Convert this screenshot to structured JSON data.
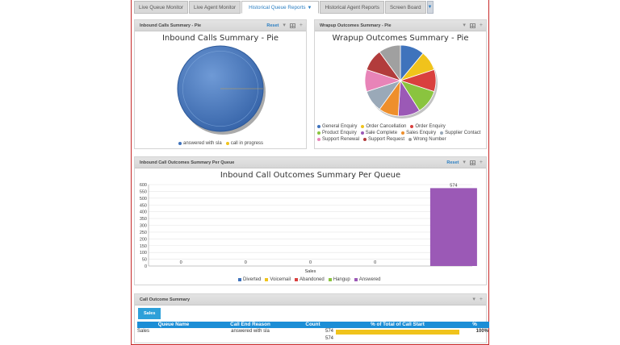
{
  "tabs": [
    {
      "label": "Live Queue Monitor"
    },
    {
      "label": "Live Agent Monitor"
    },
    {
      "label": "Historical Queue Reports"
    },
    {
      "label": "Historical Agent Reports"
    },
    {
      "label": "Screen Board"
    }
  ],
  "inbound_summary": {
    "panel_title": "Inbound Calls Summary - Pie",
    "reset_label": "Reset",
    "chart_title": "Inbound Calls Summary - Pie",
    "legend": [
      {
        "label": "answered with sla",
        "color": "#3f73bc"
      },
      {
        "label": "call in progress",
        "color": "#f0c31c"
      }
    ]
  },
  "wrapup_summary": {
    "panel_title": "Wrapup Outcomes Summary - Pie",
    "chart_title": "Wrapup Outcomes Summary - Pie",
    "legend": [
      {
        "label": "General Enquiry",
        "color": "#3f73bc"
      },
      {
        "label": "Order Cancellation",
        "color": "#f0c31c"
      },
      {
        "label": "Order Enquiry",
        "color": "#d9403e"
      },
      {
        "label": "Product Enquiry",
        "color": "#8ac43f"
      },
      {
        "label": "Sale Complete",
        "color": "#9b59b6"
      },
      {
        "label": "Sales Enquiry",
        "color": "#ee8f2c"
      },
      {
        "label": "Supplier Contact",
        "color": "#9aa9b8"
      },
      {
        "label": "Support Renewal",
        "color": "#e884b8"
      },
      {
        "label": "Support Request",
        "color": "#b23c3c"
      },
      {
        "label": "Wrong Number",
        "color": "#a0a0a0"
      }
    ]
  },
  "queue_summary": {
    "panel_title": "Inbound Call Outcomes Summary Per Queue",
    "reset_label": "Reset"
  },
  "chart_data": [
    {
      "type": "pie",
      "title": "Inbound Calls Summary - Pie",
      "labels": [
        "answered with sla",
        "call in progress"
      ],
      "values": [
        100,
        0
      ],
      "colors": [
        "#3f73bc",
        "#f0c31c"
      ]
    },
    {
      "type": "pie",
      "title": "Wrapup Outcomes Summary - Pie",
      "labels": [
        "General Enquiry",
        "Order Cancellation",
        "Order Enquiry",
        "Product Enquiry",
        "Sale Complete",
        "Sales Enquiry",
        "Supplier Contact",
        "Support Renewal",
        "Support Request",
        "Wrong Number"
      ],
      "values": [
        11,
        9,
        10,
        11,
        10,
        9,
        10,
        10,
        10,
        10
      ],
      "colors": [
        "#3f73bc",
        "#f0c31c",
        "#d9403e",
        "#8ac43f",
        "#9b59b6",
        "#ee8f2c",
        "#9aa9b8",
        "#e884b8",
        "#b23c3c",
        "#a0a0a0"
      ]
    },
    {
      "type": "bar",
      "title": "Inbound Call Outcomes Summary Per Queue",
      "xlabel": "Sales",
      "ylabel": "",
      "ylim": [
        0,
        600
      ],
      "yticks": [
        0,
        50,
        100,
        150,
        200,
        250,
        300,
        350,
        400,
        450,
        500,
        550,
        600
      ],
      "categories": [
        "Sales"
      ],
      "series": [
        {
          "name": "Diverted",
          "color": "#3f73bc",
          "values": [
            0
          ]
        },
        {
          "name": "Voicemail",
          "color": "#f0c31c",
          "values": [
            0
          ]
        },
        {
          "name": "Abandoned",
          "color": "#d9403e",
          "values": [
            0
          ]
        },
        {
          "name": "Hangup",
          "color": "#8ac43f",
          "values": [
            0
          ]
        },
        {
          "name": "Answered",
          "color": "#9b59b6",
          "values": [
            574
          ]
        }
      ],
      "data_labels": [
        "0",
        "0",
        "0",
        "0",
        "574"
      ]
    }
  ],
  "call_outcome": {
    "panel_title": "Call Outcome Summary",
    "tab_label": "Sales",
    "columns": [
      "Queue Name",
      "Call End Reason",
      "Count",
      "% of Total of Call Start",
      "%"
    ],
    "rows": [
      {
        "queue": "Sales",
        "reason": "answered with sla",
        "count": "574",
        "pct": "100%",
        "pct_value": 100
      }
    ],
    "total_count": "574"
  }
}
